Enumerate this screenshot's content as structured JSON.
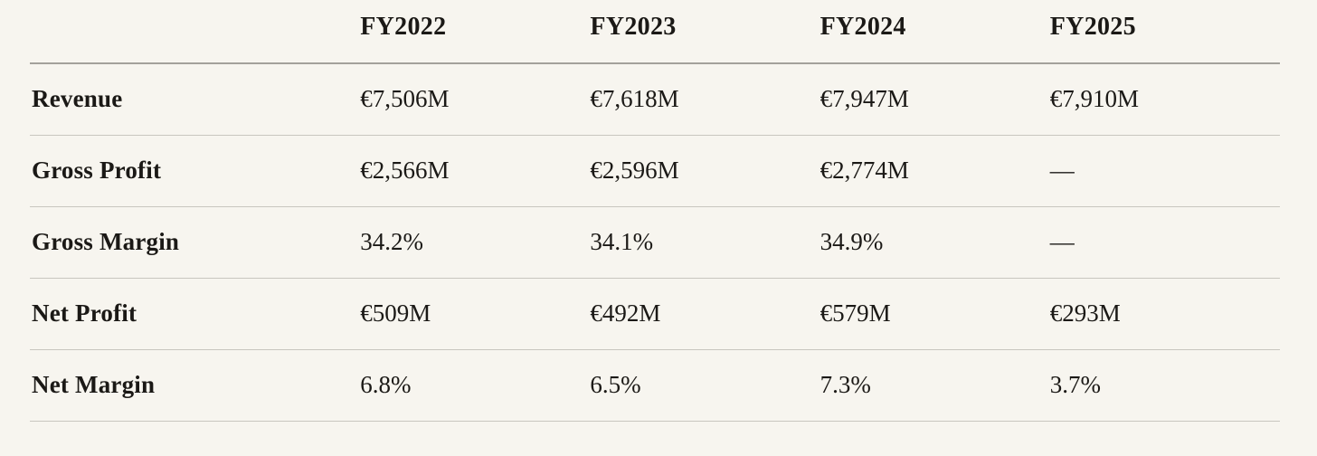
{
  "colors": {
    "background": "#f7f5ef",
    "text": "#1b1916",
    "header_rule": "#a3a19b",
    "row_rule": "#c8c6bf"
  },
  "table": {
    "columns": [
      "",
      "FY2022",
      "FY2023",
      "FY2024",
      "FY2025"
    ],
    "rows": [
      {
        "label": "Revenue",
        "values": [
          "€7,506M",
          "€7,618M",
          "€7,947M",
          "€7,910M"
        ]
      },
      {
        "label": "Gross Profit",
        "values": [
          "€2,566M",
          "€2,596M",
          "€2,774M",
          "—"
        ]
      },
      {
        "label": "Gross Margin",
        "values": [
          "34.2%",
          "34.1%",
          "34.9%",
          "—"
        ]
      },
      {
        "label": "Net Profit",
        "values": [
          "€509M",
          "€492M",
          "€579M",
          "€293M"
        ]
      },
      {
        "label": "Net Margin",
        "values": [
          "6.8%",
          "6.5%",
          "7.3%",
          "3.7%"
        ]
      }
    ]
  },
  "chart_data": {
    "type": "table",
    "title": "",
    "categories": [
      "FY2022",
      "FY2023",
      "FY2024",
      "FY2025"
    ],
    "series": [
      {
        "name": "Revenue",
        "values": [
          "€7,506M",
          "€7,618M",
          "€7,947M",
          "€7,910M"
        ],
        "values_numeric": [
          7506,
          7618,
          7947,
          7910
        ],
        "unit": "EUR millions"
      },
      {
        "name": "Gross Profit",
        "values": [
          "€2,566M",
          "€2,596M",
          "€2,774M",
          "—"
        ],
        "values_numeric": [
          2566,
          2596,
          2774,
          null
        ],
        "unit": "EUR millions"
      },
      {
        "name": "Gross Margin",
        "values": [
          "34.2%",
          "34.1%",
          "34.9%",
          "—"
        ],
        "values_numeric": [
          34.2,
          34.1,
          34.9,
          null
        ],
        "unit": "percent"
      },
      {
        "name": "Net Profit",
        "values": [
          "€509M",
          "€492M",
          "€579M",
          "€293M"
        ],
        "values_numeric": [
          509,
          492,
          579,
          293
        ],
        "unit": "EUR millions"
      },
      {
        "name": "Net Margin",
        "values": [
          "6.8%",
          "6.5%",
          "7.3%",
          "3.7%"
        ],
        "values_numeric": [
          6.8,
          6.5,
          7.3,
          3.7
        ],
        "unit": "percent"
      }
    ],
    "layout": {
      "grid": "horizontal-rules-only",
      "legend": false,
      "header_position": "top",
      "row_labels_position": "left"
    }
  }
}
